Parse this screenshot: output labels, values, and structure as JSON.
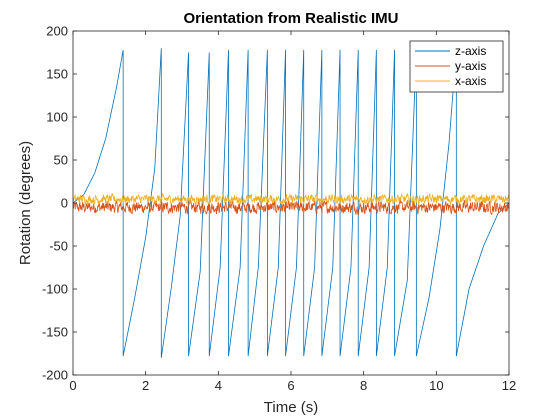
{
  "chart_data": {
    "type": "line",
    "title": "Orientation from Realistic IMU",
    "xlabel": "Time (s)",
    "ylabel": "Rotation (degrees)",
    "xlim": [
      0,
      12
    ],
    "ylim": [
      -200,
      200
    ],
    "xticks": [
      0,
      2,
      4,
      6,
      8,
      10,
      12
    ],
    "yticks": [
      -200,
      -150,
      -100,
      -50,
      0,
      50,
      100,
      150,
      200
    ],
    "grid": false,
    "legend_position": "top-right",
    "series": [
      {
        "name": "z-axis",
        "color": "#0072BD",
        "x": [
          0,
          0.3,
          0.6,
          0.9,
          1.2,
          1.38,
          1.38,
          1.7,
          2.0,
          2.25,
          2.43,
          2.43,
          2.7,
          2.95,
          3.18,
          3.18,
          3.5,
          3.75,
          3.75,
          4.05,
          4.28,
          4.28,
          4.6,
          4.82,
          4.82,
          5.1,
          5.35,
          5.35,
          5.65,
          5.85,
          5.85,
          6.15,
          6.35,
          6.35,
          6.65,
          6.85,
          6.85,
          7.15,
          7.35,
          7.35,
          7.65,
          7.85,
          7.85,
          8.15,
          8.35,
          8.35,
          8.65,
          8.85,
          8.85,
          9.2,
          9.45,
          9.45,
          9.8,
          10.1,
          10.35,
          10.55,
          10.55,
          10.9,
          11.3,
          11.7,
          12.0
        ],
        "values": [
          0,
          10,
          35,
          75,
          135,
          178,
          -178,
          -110,
          -40,
          40,
          180,
          -180,
          -100,
          -15,
          175,
          -178,
          -80,
          175,
          -178,
          -75,
          178,
          -178,
          -75,
          178,
          -178,
          -75,
          178,
          -178,
          -75,
          178,
          -178,
          -75,
          178,
          -178,
          -75,
          178,
          -178,
          -75,
          178,
          -178,
          -75,
          178,
          -178,
          -75,
          178,
          -178,
          -75,
          178,
          -178,
          -90,
          178,
          -178,
          -110,
          -30,
          70,
          178,
          -178,
          -100,
          -50,
          -12,
          0
        ]
      },
      {
        "name": "y-axis",
        "color": "#D95319",
        "values_description_free": true,
        "mean": -5,
        "noise_range": [
          -15,
          5
        ]
      },
      {
        "name": "x-axis",
        "color": "#EDB120",
        "mean": 3,
        "noise_range": [
          -3,
          12
        ]
      }
    ]
  }
}
